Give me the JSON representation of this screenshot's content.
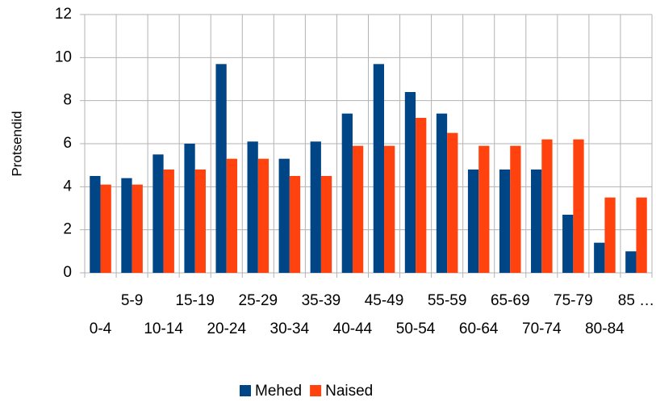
{
  "chart_data": {
    "type": "bar",
    "y_label": "Protsendid",
    "categories": [
      "0-4",
      "5-9",
      "10-14",
      "15-19",
      "20-24",
      "25-29",
      "30-34",
      "35-39",
      "40-44",
      "45-49",
      "50-54",
      "55-59",
      "60-64",
      "65-69",
      "70-74",
      "75-79",
      "80-84",
      "85 …"
    ],
    "series": [
      {
        "name": "Mehed",
        "color": "#004586",
        "values": [
          4.5,
          4.4,
          5.5,
          6.0,
          9.7,
          6.1,
          5.3,
          6.1,
          7.4,
          9.7,
          8.4,
          7.4,
          4.8,
          4.8,
          4.8,
          2.7,
          1.4,
          1.0
        ]
      },
      {
        "name": "Naised",
        "color": "#ff420e",
        "values": [
          4.1,
          4.1,
          4.8,
          4.8,
          5.3,
          5.3,
          4.5,
          4.5,
          5.9,
          5.9,
          7.2,
          6.5,
          5.9,
          5.9,
          6.2,
          6.2,
          3.5,
          3.5
        ]
      }
    ],
    "ylim": [
      0,
      12
    ],
    "yticks": [
      0,
      2,
      4,
      6,
      8,
      10,
      12
    ],
    "grid": true,
    "legend": "bottom"
  }
}
